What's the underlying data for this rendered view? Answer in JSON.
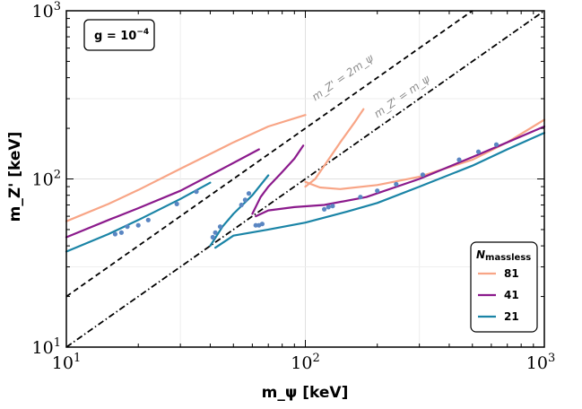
{
  "chart_data": {
    "type": "line",
    "xlabel": "m_ψ [keV]",
    "ylabel": "m_Z' [keV]",
    "xscale": "log",
    "yscale": "log",
    "xlim": [
      10,
      1000
    ],
    "ylim": [
      10,
      1000
    ],
    "x_ticks": [
      {
        "base": "10",
        "exp": "1"
      },
      {
        "base": "10",
        "exp": "2"
      },
      {
        "base": "10",
        "exp": "3"
      }
    ],
    "y_ticks": [
      {
        "base": "10",
        "exp": "1"
      },
      {
        "base": "10",
        "exp": "2"
      },
      {
        "base": "10",
        "exp": "3"
      }
    ],
    "grid": true,
    "coupling_label": "g = 10",
    "coupling_exp": "−4",
    "legend": {
      "title_main": "N",
      "title_sub": "massless",
      "position": "bottom-right",
      "entries": [
        {
          "label": "81",
          "color": "#f8a586"
        },
        {
          "label": "41",
          "color": "#8b1a8c"
        },
        {
          "label": "21",
          "color": "#1a84a6"
        }
      ]
    },
    "reference_lines": [
      {
        "label": "m_Z' = 2m_ψ",
        "factor": 2,
        "style": "dashed"
      },
      {
        "label": "m_Z' = m_ψ",
        "factor": 1,
        "style": "dashdot"
      }
    ],
    "series": [
      {
        "name": "81",
        "color": "#f8a586",
        "segments": [
          [
            [
              10,
              56
            ],
            [
              15,
              71
            ],
            [
              20,
              86
            ],
            [
              30,
              115
            ],
            [
              50,
              165
            ],
            [
              70,
              205
            ],
            [
              100,
              240
            ]
          ],
          [
            [
              100,
              90
            ],
            [
              110,
              100
            ],
            [
              120,
              120
            ],
            [
              140,
              165
            ],
            [
              160,
              215
            ],
            [
              175,
              260
            ]
          ],
          [
            [
              100,
              96
            ],
            [
              115,
              89
            ],
            [
              140,
              87
            ],
            [
              200,
              92
            ],
            [
              300,
              103
            ],
            [
              500,
              130
            ],
            [
              700,
              165
            ],
            [
              1000,
              225
            ]
          ]
        ]
      },
      {
        "name": "41",
        "color": "#8b1a8c",
        "segments": [
          [
            [
              10,
              45
            ],
            [
              15,
              57
            ],
            [
              20,
              67
            ],
            [
              30,
              85
            ],
            [
              45,
              115
            ],
            [
              64,
              150
            ]
          ],
          [
            [
              60,
              62
            ],
            [
              65,
              78
            ],
            [
              70,
              90
            ],
            [
              80,
              110
            ],
            [
              90,
              132
            ],
            [
              98,
              158
            ]
          ],
          [
            [
              62,
              60
            ],
            [
              70,
              65
            ],
            [
              90,
              68
            ],
            [
              120,
              70
            ],
            [
              180,
              78
            ],
            [
              300,
              100
            ],
            [
              500,
              135
            ],
            [
              700,
              165
            ],
            [
              1000,
              205
            ]
          ]
        ]
      },
      {
        "name": "21",
        "color": "#1a84a6",
        "segments": [
          [
            [
              10,
              37
            ],
            [
              15,
              47
            ],
            [
              20,
              57
            ],
            [
              30,
              76
            ],
            [
              40,
              95
            ]
          ],
          [
            [
              40,
              40
            ],
            [
              45,
              52
            ],
            [
              50,
              62
            ],
            [
              60,
              80
            ],
            [
              70,
              105
            ]
          ],
          [
            [
              42,
              39
            ],
            [
              50,
              46
            ],
            [
              70,
              50
            ],
            [
              100,
              55
            ],
            [
              150,
              64
            ],
            [
              200,
              72
            ],
            [
              300,
              90
            ],
            [
              500,
              120
            ],
            [
              700,
              150
            ],
            [
              1000,
              188
            ]
          ]
        ]
      }
    ],
    "scatter": {
      "color": "#5a86c2",
      "points": [
        [
          16,
          47
        ],
        [
          17,
          48
        ],
        [
          18,
          52
        ],
        [
          20,
          53
        ],
        [
          22,
          57
        ],
        [
          29,
          71
        ],
        [
          35,
          84
        ],
        [
          41,
          45
        ],
        [
          42,
          48
        ],
        [
          44,
          52
        ],
        [
          54,
          70
        ],
        [
          56,
          75
        ],
        [
          58,
          82
        ],
        [
          62,
          53
        ],
        [
          64,
          53
        ],
        [
          66,
          54
        ],
        [
          120,
          66
        ],
        [
          125,
          68
        ],
        [
          130,
          69
        ],
        [
          170,
          78
        ],
        [
          200,
          85
        ],
        [
          240,
          93
        ],
        [
          310,
          106
        ],
        [
          440,
          130
        ],
        [
          530,
          145
        ],
        [
          630,
          160
        ]
      ]
    }
  }
}
